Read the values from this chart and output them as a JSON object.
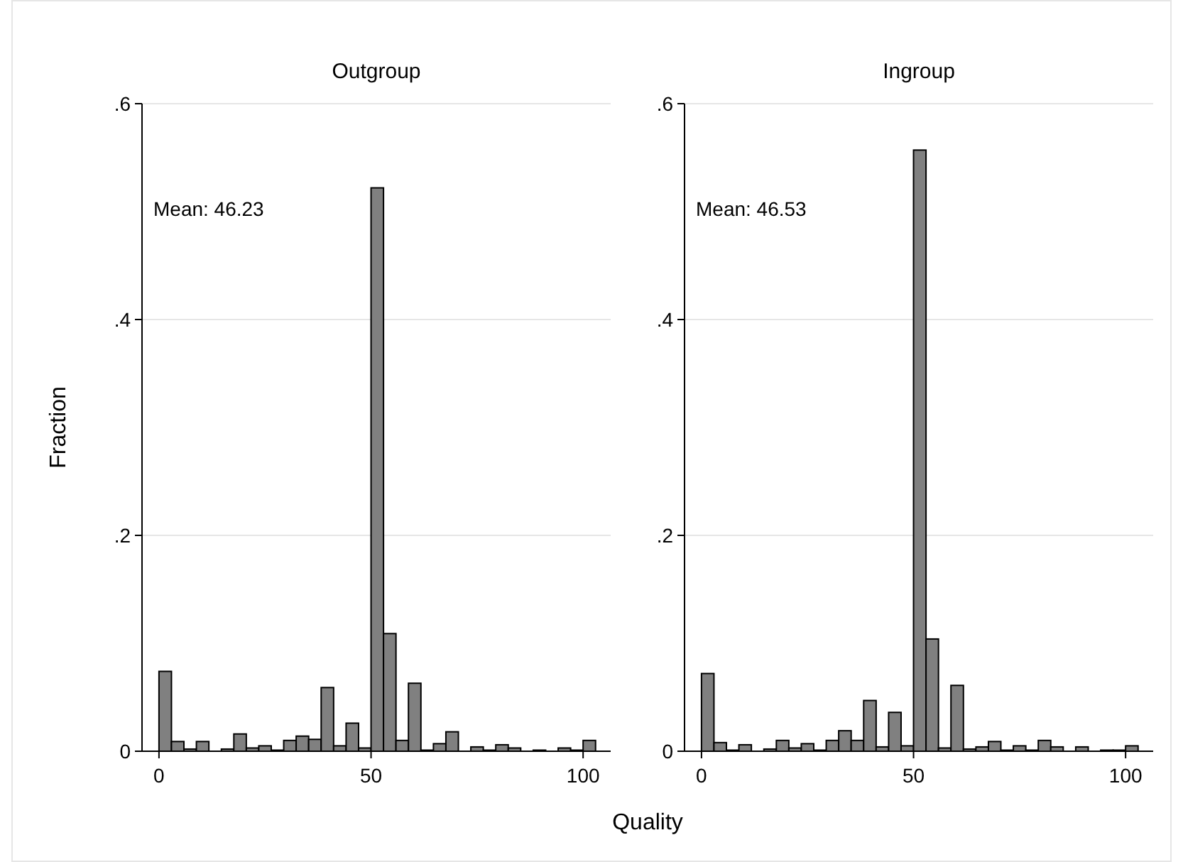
{
  "chart_data": [
    {
      "type": "histogram",
      "title": "Outgroup",
      "ylabel": "Fraction",
      "xlabel": "Quality",
      "color": "#808080",
      "bins": [
        0,
        2.94,
        5.88,
        8.82,
        11.76,
        14.71,
        17.65,
        20.59,
        23.53,
        26.47,
        29.41,
        32.35,
        35.29,
        38.24,
        41.18,
        44.12,
        47.06,
        50,
        52.94,
        55.88,
        58.82,
        61.76,
        64.71,
        67.65,
        70.59,
        73.53,
        76.47,
        79.41,
        82.35,
        85.29,
        88.24,
        91.18,
        94.12,
        97.06,
        100,
        102.94
      ],
      "values": [
        0.074,
        0.009,
        0.002,
        0.009,
        0,
        0.002,
        0.016,
        0.003,
        0.005,
        0.001,
        0.01,
        0.014,
        0.011,
        0.059,
        0.005,
        0.026,
        0.003,
        0.522,
        0.109,
        0.01,
        0.063,
        0.001,
        0.007,
        0.018,
        0,
        0.004,
        0.001,
        0.006,
        0.003,
        0,
        0.001,
        0,
        0.003,
        0.001,
        0.01
      ],
      "xlim": [
        -4,
        106.5
      ],
      "xticks": [
        0,
        50,
        100
      ],
      "ylim": [
        0,
        0.6
      ],
      "yticks": [
        {
          "value": 0,
          "label": "0"
        },
        {
          "value": 0.2,
          "label": ".2"
        },
        {
          "value": 0.4,
          "label": ".4"
        },
        {
          "value": 0.6,
          "label": ".6"
        }
      ],
      "grid": "y",
      "annotations": [
        "Mean: 46.23"
      ]
    },
    {
      "type": "histogram",
      "title": "Ingroup",
      "color": "#808080",
      "bins": [
        0,
        2.94,
        5.88,
        8.82,
        11.76,
        14.71,
        17.65,
        20.59,
        23.53,
        26.47,
        29.41,
        32.35,
        35.29,
        38.24,
        41.18,
        44.12,
        47.06,
        50,
        52.94,
        55.88,
        58.82,
        61.76,
        64.71,
        67.65,
        70.59,
        73.53,
        76.47,
        79.41,
        82.35,
        85.29,
        88.24,
        91.18,
        94.12,
        97.06,
        100,
        102.94
      ],
      "values": [
        0.072,
        0.008,
        0.001,
        0.006,
        0,
        0.002,
        0.01,
        0.003,
        0.007,
        0.001,
        0.01,
        0.019,
        0.01,
        0.047,
        0.004,
        0.036,
        0.005,
        0.557,
        0.104,
        0.003,
        0.061,
        0.002,
        0.004,
        0.009,
        0.001,
        0.005,
        0.001,
        0.01,
        0.004,
        0,
        0.004,
        0,
        0.001,
        0.001,
        0.005
      ],
      "xlim": [
        -4,
        106.5
      ],
      "xticks": [
        0,
        50,
        100
      ],
      "ylim": [
        0,
        0.6
      ],
      "yticks": [
        {
          "value": 0,
          "label": "0"
        },
        {
          "value": 0.2,
          "label": ".2"
        },
        {
          "value": 0.4,
          "label": ".4"
        },
        {
          "value": 0.6,
          "label": ".6"
        }
      ],
      "grid": "y",
      "annotations": [
        "Mean: 46.53"
      ]
    }
  ]
}
